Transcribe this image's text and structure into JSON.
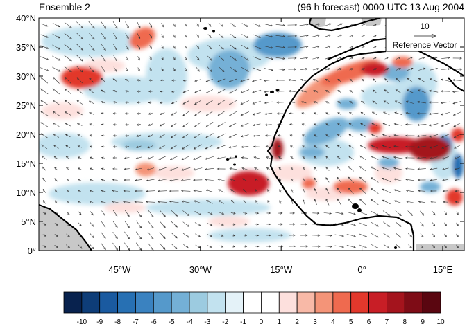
{
  "title_left": "Ensemble 2",
  "title_right": "(96 h forecast) 0000 UTC 13 Aug 2004",
  "lat_labels": [
    "40°N",
    "35°N",
    "30°N",
    "25°N",
    "20°N",
    "15°N",
    "10°N",
    "5°N",
    "0°"
  ],
  "lat_values": [
    40,
    35,
    30,
    25,
    20,
    15,
    10,
    5,
    0
  ],
  "lon_labels": [
    "45°W",
    "30°W",
    "15°W",
    "0°",
    "15°E"
  ],
  "lon_values": [
    -45,
    -30,
    -15,
    0,
    15
  ],
  "map_extent": {
    "lon_min": -60,
    "lon_max": 19,
    "lat_min": 0,
    "lat_max": 40
  },
  "reference_vector": {
    "value": "10",
    "label": "Reference Vector"
  },
  "colorbar": {
    "labels": [
      "-10",
      "-9",
      "-8",
      "-7",
      "-6",
      "-5",
      "-4",
      "-3",
      "-2",
      "-1",
      "0",
      "1",
      "2",
      "3",
      "4",
      "5",
      "6",
      "7",
      "8",
      "9",
      "10"
    ],
    "colors": [
      "#08224e",
      "#0e3d78",
      "#1a5aa0",
      "#2770b3",
      "#3a82c0",
      "#5599cb",
      "#74b0d6",
      "#9ccbe0",
      "#c2e2ef",
      "#e4f2f8",
      "#ffffff",
      "#ffffff",
      "#fde0dd",
      "#f8b9a7",
      "#f49478",
      "#ef6a4f",
      "#e2382c",
      "#c81e26",
      "#a4141d",
      "#7e0c16",
      "#5a0610"
    ]
  },
  "colors": {
    "land_gray": "#c8c8c8",
    "coast": "#000000"
  }
}
